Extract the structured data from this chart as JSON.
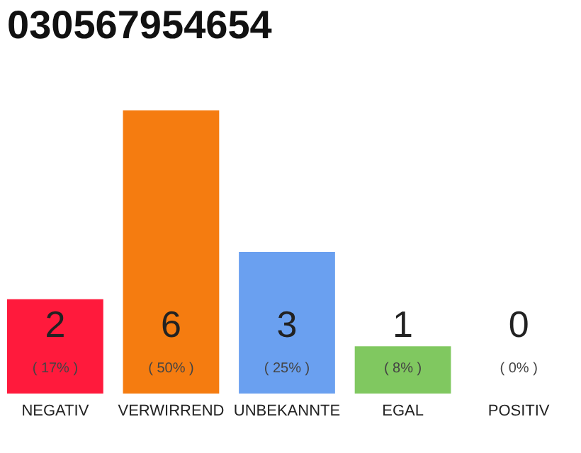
{
  "chart_data": {
    "type": "bar",
    "title": "030567954654",
    "categories": [
      "NEGATIV",
      "VERWIRREND",
      "UNBEKANNTE",
      "EGAL",
      "POSITIV"
    ],
    "values": [
      2,
      6,
      3,
      1,
      0
    ],
    "colors": [
      "#ff1a3c",
      "#f57c10",
      "#6aa0f0",
      "#80c860",
      "#d0d0d0"
    ],
    "data_labels": true,
    "annotations": [
      {
        "text": "( 17% )",
        "x": "NEGATIV",
        "y": 0
      },
      {
        "text": "( 50% )",
        "x": "VERWIRREND",
        "y": 0
      },
      {
        "text": "( 25% )",
        "x": "UNBEKANNTE",
        "y": 0
      },
      {
        "text": "( 8% )",
        "x": "EGAL",
        "y": 0
      },
      {
        "text": "( 0% )",
        "x": "POSITIV",
        "y": 0
      }
    ]
  }
}
